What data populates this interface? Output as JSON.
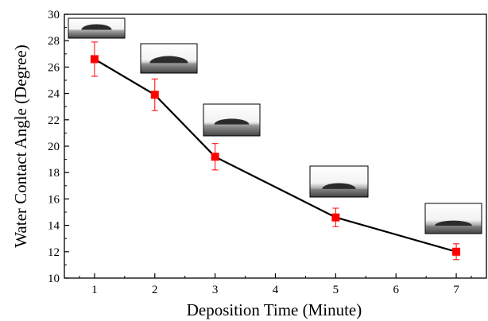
{
  "chart_data": {
    "type": "line",
    "title": "",
    "xlabel": "Deposition Time (Minute)",
    "ylabel": "Water Contact Angle (Degree)",
    "xlim": [
      0.5,
      7.5
    ],
    "ylim": [
      10,
      30
    ],
    "x_ticks": [
      1,
      2,
      3,
      4,
      5,
      6,
      7
    ],
    "y_ticks": [
      10,
      12,
      14,
      16,
      18,
      20,
      22,
      24,
      26,
      28,
      30
    ],
    "grid": false,
    "legend": "none",
    "series": [
      {
        "x": [
          1,
          2,
          3,
          5,
          7
        ],
        "values": [
          26.6,
          23.9,
          19.2,
          14.6,
          12.0
        ],
        "error": [
          1.3,
          1.2,
          1.0,
          0.7,
          0.6
        ],
        "line_color": "#000000",
        "marker_color": "#ff0000",
        "marker": "square",
        "errorbar_color": "#ff0000"
      }
    ],
    "insets": [
      {
        "name": "droplet-image-1min",
        "x_minute": 1,
        "drop": "tall"
      },
      {
        "name": "droplet-image-2min",
        "x_minute": 2,
        "drop": "medium"
      },
      {
        "name": "droplet-image-3min",
        "x_minute": 3,
        "drop": "medium"
      },
      {
        "name": "droplet-image-5min",
        "x_minute": 5,
        "drop": "flat"
      },
      {
        "name": "droplet-image-7min",
        "x_minute": 7,
        "drop": "flat"
      }
    ]
  }
}
